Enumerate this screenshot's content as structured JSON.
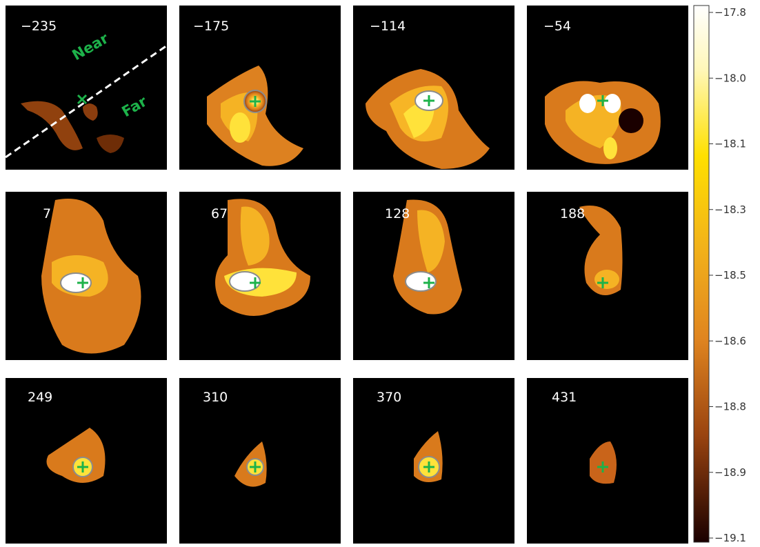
{
  "panels": [
    {
      "label": "−235"
    },
    {
      "label": "−175"
    },
    {
      "label": "−114"
    },
    {
      "label": "−54"
    },
    {
      "label": "7"
    },
    {
      "label": "67"
    },
    {
      "label": "128"
    },
    {
      "label": "188"
    },
    {
      "label": "249"
    },
    {
      "label": "310"
    },
    {
      "label": "370"
    },
    {
      "label": "431"
    }
  ],
  "annotations": {
    "near": "Near",
    "far": "Far"
  },
  "colorbar": {
    "ticks": [
      "−17.8",
      "−18.0",
      "−18.1",
      "−18.3",
      "−18.5",
      "−18.6",
      "−18.8",
      "−18.9",
      "−19.1"
    ],
    "colors": {
      "top": "#ffffff",
      "high": "#fff07a",
      "yellow": "#ffd200",
      "orange": "#e89320",
      "dark": "#6a2a08",
      "bottom": "#1a0000"
    }
  },
  "marker_color": "#1db24a",
  "contour_color": "#8c8c8c"
}
